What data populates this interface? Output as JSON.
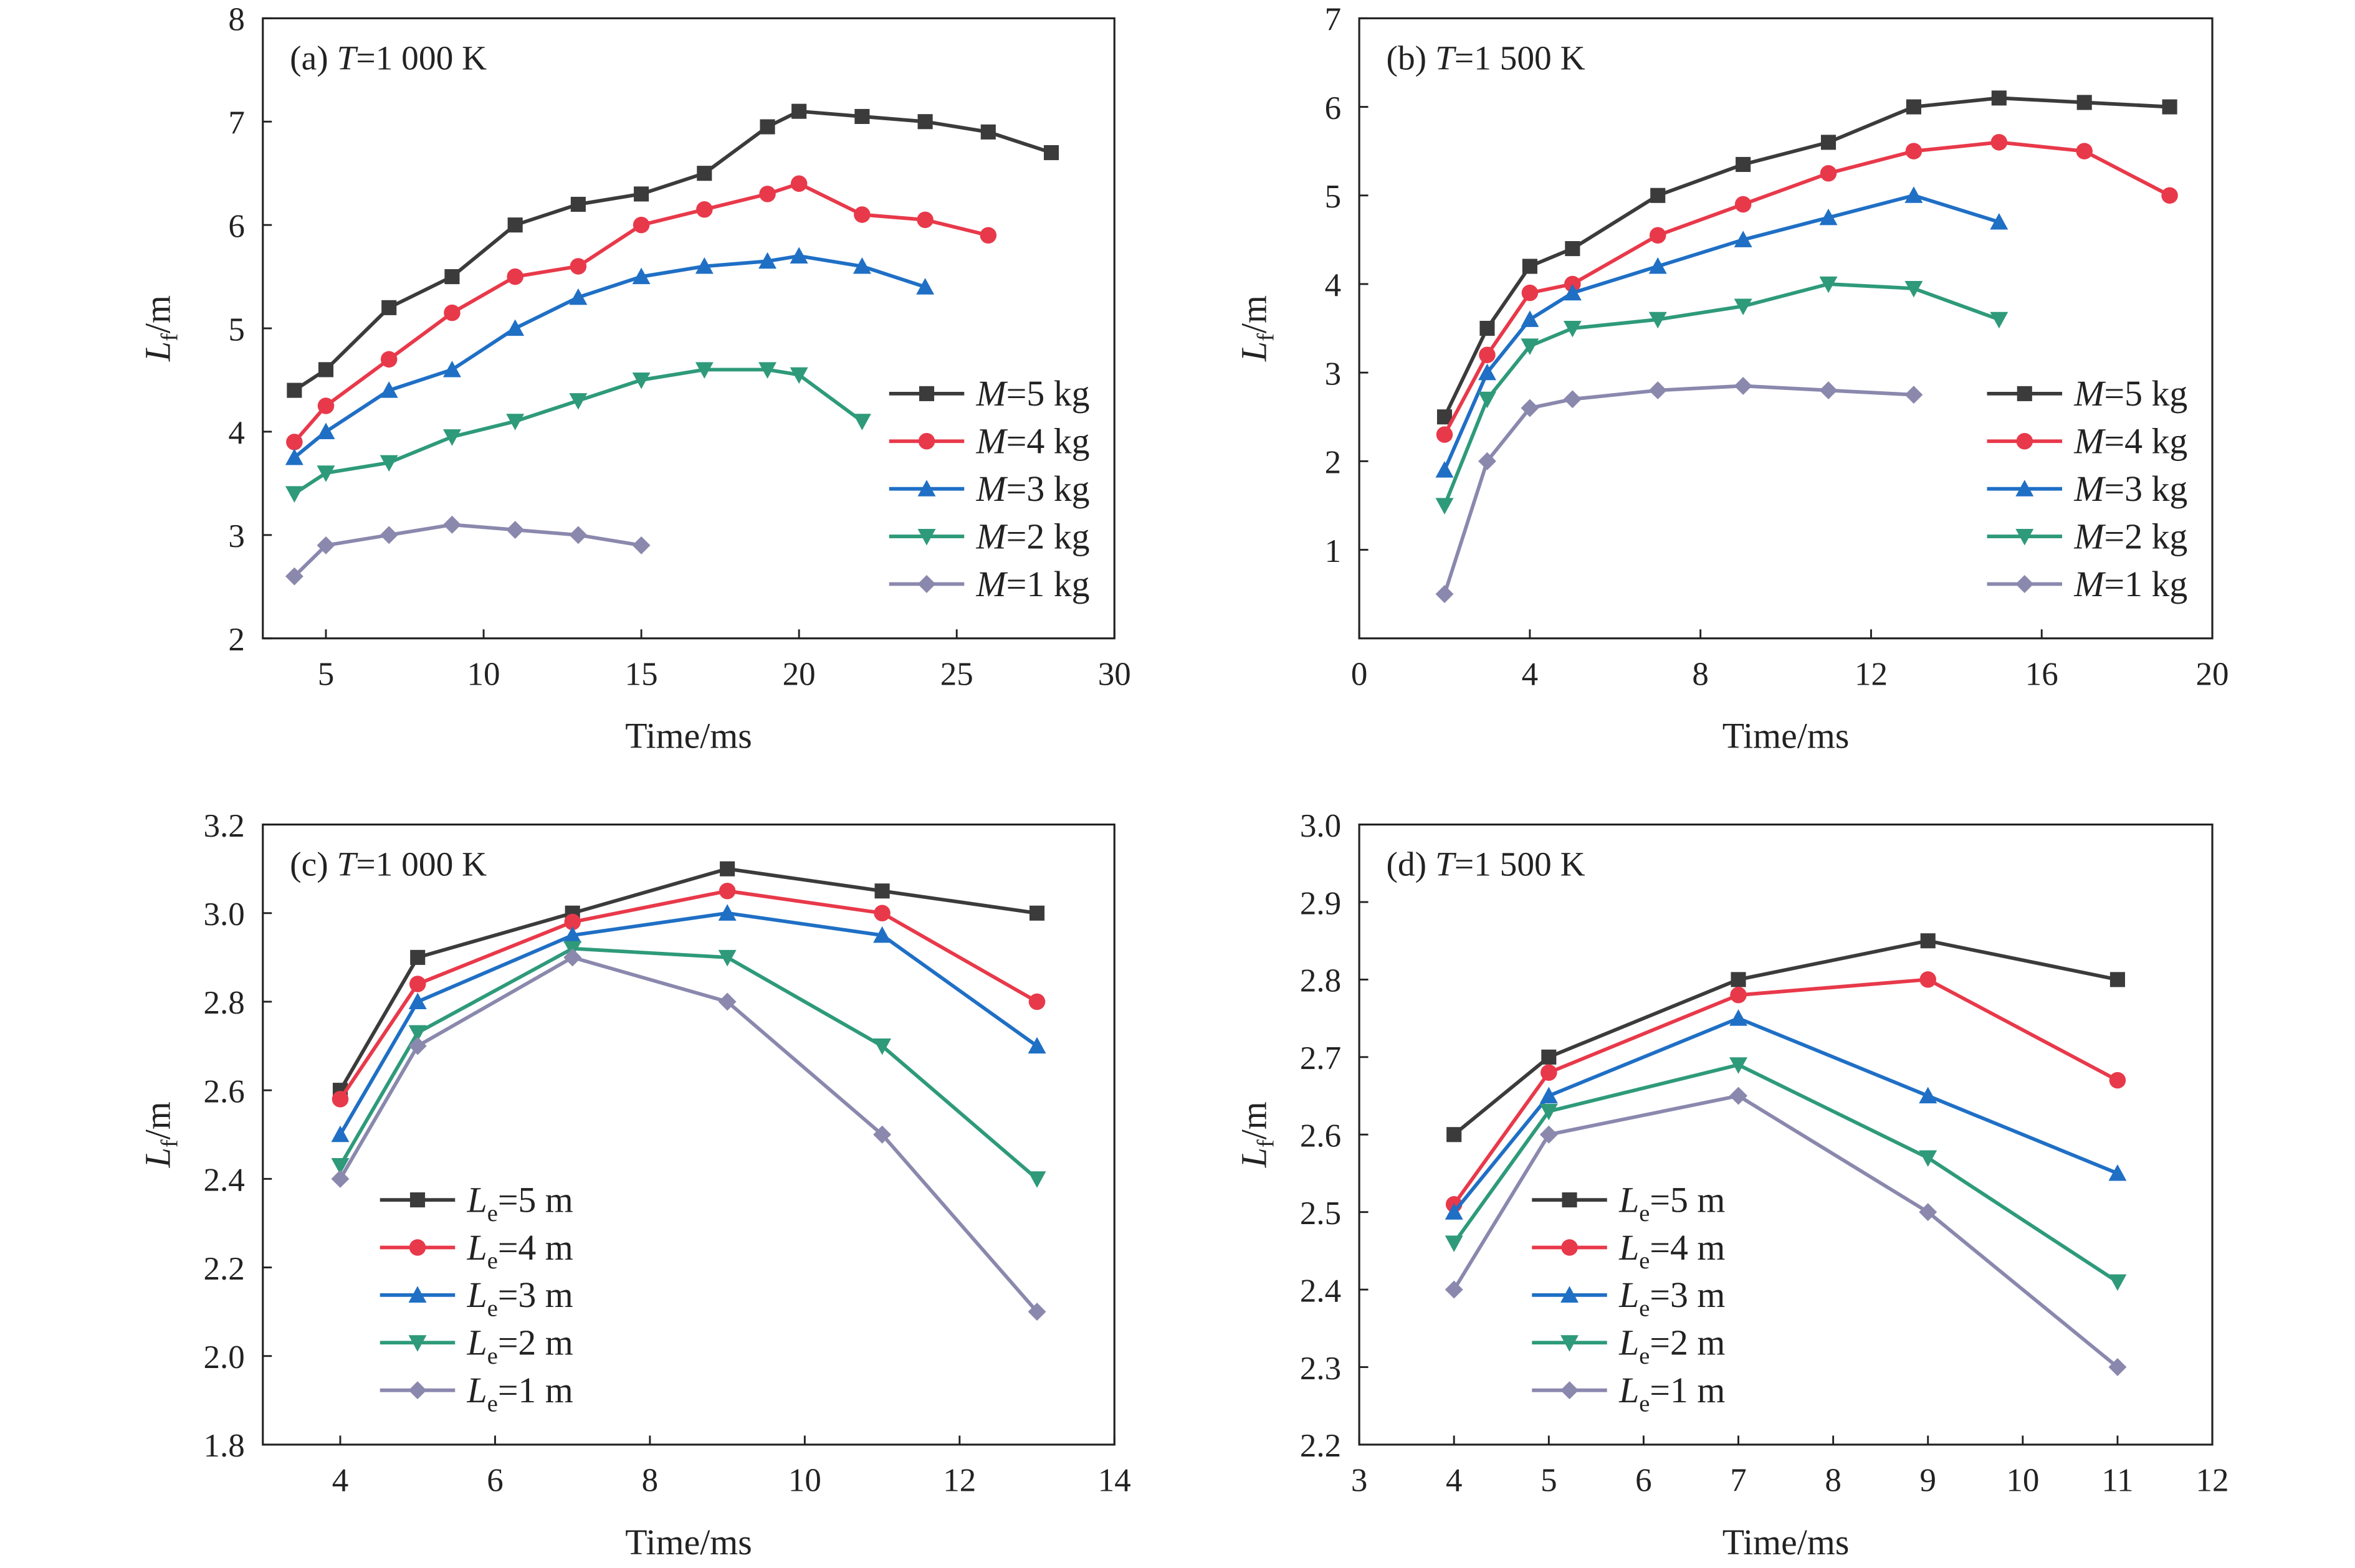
{
  "colors": {
    "M5": "#3b3b3b",
    "M4": "#e8394a",
    "M3": "#1f6fc5",
    "M2": "#2e9a7a",
    "M1": "#8a88ad"
  },
  "chart_data": [
    {
      "type": "line",
      "panel": "a",
      "title": "(a) T=1 000 K",
      "xlabel": "Time/ms",
      "ylabel": "Lf/m",
      "xlim": [
        3,
        30
      ],
      "ylim": [
        2,
        8
      ],
      "xticks": [
        5,
        10,
        15,
        20,
        25,
        30
      ],
      "yticks": [
        2,
        3,
        4,
        5,
        6,
        7,
        8
      ],
      "legend": "bottom-right",
      "series": [
        {
          "name": "M=5 kg",
          "marker": "square",
          "color": "#3b3b3b",
          "x": [
            4,
            5,
            7,
            9,
            11,
            13,
            15,
            17,
            19,
            20,
            22,
            24,
            26,
            28
          ],
          "y": [
            4.4,
            4.6,
            5.2,
            5.5,
            6.0,
            6.2,
            6.3,
            6.5,
            6.95,
            7.1,
            7.05,
            7.0,
            6.9,
            6.7
          ]
        },
        {
          "name": "M=4 kg",
          "marker": "circle",
          "color": "#e8394a",
          "x": [
            4,
            5,
            7,
            9,
            11,
            13,
            15,
            17,
            19,
            20,
            22,
            24,
            26
          ],
          "y": [
            3.9,
            4.25,
            4.7,
            5.15,
            5.5,
            5.6,
            6.0,
            6.15,
            6.3,
            6.4,
            6.1,
            6.05,
            5.9
          ]
        },
        {
          "name": "M=3 kg",
          "marker": "triangle-up",
          "color": "#1f6fc5",
          "x": [
            4,
            5,
            7,
            9,
            11,
            13,
            15,
            17,
            19,
            20,
            22,
            24
          ],
          "y": [
            3.75,
            4.0,
            4.4,
            4.6,
            5.0,
            5.3,
            5.5,
            5.6,
            5.65,
            5.7,
            5.6,
            5.4
          ]
        },
        {
          "name": "M=2 kg",
          "marker": "triangle-down",
          "color": "#2e9a7a",
          "x": [
            4,
            5,
            7,
            9,
            11,
            13,
            15,
            17,
            19,
            20,
            22
          ],
          "y": [
            3.4,
            3.6,
            3.7,
            3.95,
            4.1,
            4.3,
            4.5,
            4.6,
            4.6,
            4.55,
            4.1
          ]
        },
        {
          "name": "M=1 kg",
          "marker": "diamond",
          "color": "#8a88ad",
          "x": [
            4,
            5,
            7,
            9,
            11,
            13,
            15
          ],
          "y": [
            2.6,
            2.9,
            3.0,
            3.1,
            3.05,
            3.0,
            2.9
          ]
        }
      ]
    },
    {
      "type": "line",
      "panel": "b",
      "title": "(b) T=1 500 K",
      "xlabel": "Time/ms",
      "ylabel": "Lf/m",
      "xlim": [
        0,
        20
      ],
      "ylim": [
        0,
        7
      ],
      "xticks": [
        0,
        4,
        8,
        12,
        16,
        20
      ],
      "yticks": [
        1,
        2,
        3,
        4,
        5,
        6,
        7
      ],
      "legend": "bottom-right",
      "series": [
        {
          "name": "M=5 kg",
          "marker": "square",
          "color": "#3b3b3b",
          "x": [
            2,
            3,
            4,
            5,
            7,
            9,
            11,
            13,
            15,
            17,
            19
          ],
          "y": [
            2.5,
            3.5,
            4.2,
            4.4,
            5.0,
            5.35,
            5.6,
            6.0,
            6.1,
            6.05,
            6.0
          ]
        },
        {
          "name": "M=4 kg",
          "marker": "circle",
          "color": "#e8394a",
          "x": [
            2,
            3,
            4,
            5,
            7,
            9,
            11,
            13,
            15,
            17,
            19
          ],
          "y": [
            2.3,
            3.2,
            3.9,
            4.0,
            4.55,
            4.9,
            5.25,
            5.5,
            5.6,
            5.5,
            5.0
          ]
        },
        {
          "name": "M=3 kg",
          "marker": "triangle-up",
          "color": "#1f6fc5",
          "x": [
            2,
            3,
            4,
            5,
            7,
            9,
            11,
            13,
            15
          ],
          "y": [
            1.9,
            3.0,
            3.6,
            3.9,
            4.2,
            4.5,
            4.75,
            5.0,
            4.7
          ]
        },
        {
          "name": "M=2 kg",
          "marker": "triangle-down",
          "color": "#2e9a7a",
          "x": [
            2,
            3,
            4,
            5,
            7,
            9,
            11,
            13,
            15
          ],
          "y": [
            1.5,
            2.7,
            3.3,
            3.5,
            3.6,
            3.75,
            4.0,
            3.95,
            3.6
          ]
        },
        {
          "name": "M=1 kg",
          "marker": "diamond",
          "color": "#8a88ad",
          "x": [
            2,
            3,
            4,
            5,
            7,
            9,
            11,
            13
          ],
          "y": [
            0.5,
            2.0,
            2.6,
            2.7,
            2.8,
            2.85,
            2.8,
            2.75
          ]
        }
      ]
    },
    {
      "type": "line",
      "panel": "c",
      "title": "(c) T=1 000 K",
      "xlabel": "Time/ms",
      "ylabel": "Lf/m",
      "xlim": [
        3,
        14
      ],
      "ylim": [
        1.8,
        3.2
      ],
      "xticks": [
        4,
        6,
        8,
        10,
        12,
        14
      ],
      "yticks": [
        "1.8",
        "2.0",
        "2.2",
        "2.4",
        "2.6",
        "2.8",
        "3.0",
        "3.2"
      ],
      "legend": "bottom-left",
      "series": [
        {
          "name": "Le=5 m",
          "marker": "square",
          "color": "#3b3b3b",
          "x": [
            4,
            5,
            7,
            9,
            11,
            13
          ],
          "y": [
            2.6,
            2.9,
            3.0,
            3.1,
            3.05,
            3.0
          ]
        },
        {
          "name": "Le=4 m",
          "marker": "circle",
          "color": "#e8394a",
          "x": [
            4,
            5,
            7,
            9,
            11,
            13
          ],
          "y": [
            2.58,
            2.84,
            2.98,
            3.05,
            3.0,
            2.8
          ]
        },
        {
          "name": "Le=3 m",
          "marker": "triangle-up",
          "color": "#1f6fc5",
          "x": [
            4,
            5,
            7,
            9,
            11,
            13
          ],
          "y": [
            2.5,
            2.8,
            2.95,
            3.0,
            2.95,
            2.7
          ]
        },
        {
          "name": "Le=2 m",
          "marker": "triangle-down",
          "color": "#2e9a7a",
          "x": [
            4,
            5,
            7,
            9,
            11,
            13
          ],
          "y": [
            2.43,
            2.73,
            2.92,
            2.9,
            2.7,
            2.4
          ]
        },
        {
          "name": "Le=1 m",
          "marker": "diamond",
          "color": "#8a88ad",
          "x": [
            4,
            5,
            7,
            9,
            11,
            13
          ],
          "y": [
            2.4,
            2.7,
            2.9,
            2.8,
            2.5,
            2.1
          ]
        }
      ]
    },
    {
      "type": "line",
      "panel": "d",
      "title": "(d) T=1 500 K",
      "xlabel": "Time/ms",
      "ylabel": "Lf/m",
      "xlim": [
        3,
        12
      ],
      "ylim": [
        2.2,
        3.0
      ],
      "xticks": [
        3,
        4,
        5,
        6,
        7,
        8,
        9,
        10,
        11,
        12
      ],
      "yticks": [
        "2.2",
        "2.3",
        "2.4",
        "2.5",
        "2.6",
        "2.7",
        "2.8",
        "2.9",
        "3.0"
      ],
      "legend": "bottom-left",
      "series": [
        {
          "name": "Le=5 m",
          "marker": "square",
          "color": "#3b3b3b",
          "x": [
            4,
            5,
            7,
            9,
            11
          ],
          "y": [
            2.6,
            2.7,
            2.8,
            2.85,
            2.8
          ]
        },
        {
          "name": "Le=4 m",
          "marker": "circle",
          "color": "#e8394a",
          "x": [
            4,
            5,
            7,
            9,
            11
          ],
          "y": [
            2.51,
            2.68,
            2.78,
            2.8,
            2.67
          ]
        },
        {
          "name": "Le=3 m",
          "marker": "triangle-up",
          "color": "#1f6fc5",
          "x": [
            4,
            5,
            7,
            9,
            11
          ],
          "y": [
            2.5,
            2.65,
            2.75,
            2.65,
            2.55
          ]
        },
        {
          "name": "Le=2 m",
          "marker": "triangle-down",
          "color": "#2e9a7a",
          "x": [
            4,
            5,
            7,
            9,
            11
          ],
          "y": [
            2.46,
            2.63,
            2.69,
            2.57,
            2.41
          ]
        },
        {
          "name": "Le=1 m",
          "marker": "diamond",
          "color": "#8a88ad",
          "x": [
            4,
            5,
            7,
            9,
            11
          ],
          "y": [
            2.4,
            2.6,
            2.65,
            2.5,
            2.3
          ]
        }
      ]
    }
  ]
}
